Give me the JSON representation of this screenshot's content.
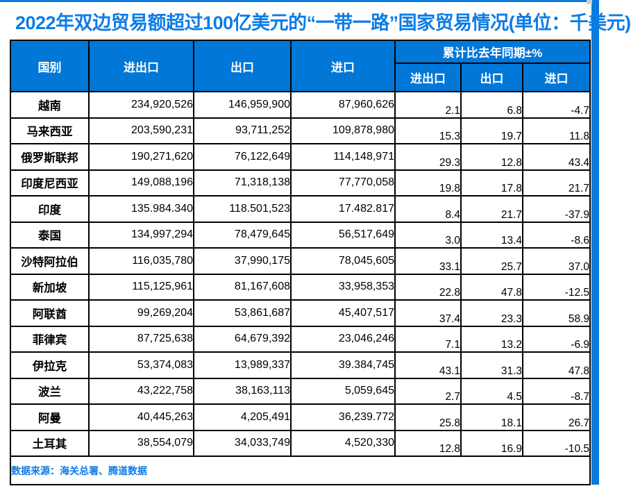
{
  "page": {
    "title": "2022年双边贸易额超过100亿美元的“一带一路”国家贸易情况(单位：千美元)",
    "source_note": "数据来源：海关总署、腾道数据"
  },
  "colors": {
    "header_bg": "#0177d7",
    "title_text": "#0d7ce6",
    "source_text": "#0d7ce6",
    "scrollbar_blue": "#0b79dd",
    "border_black": "#000000"
  },
  "headers": {
    "country": "国别",
    "total": "进出口",
    "export": "出口",
    "import": "进口",
    "group": "累计比去年同期±%",
    "sub_total": "进出口",
    "sub_export": "出口",
    "sub_import": "进口"
  },
  "chart_data": {
    "type": "table",
    "title": "2022年双边贸易额超过100亿美元的“一带一路”国家贸易情况(单位：千美元)",
    "columns": [
      "国别",
      "进出口",
      "出口",
      "进口",
      "累计比去年同期±% 进出口",
      "累计比去年同期±% 出口",
      "累计比去年同期±% 进口"
    ],
    "rows": [
      {
        "country": "越南",
        "total": "234,920,526",
        "export": "146,959,900",
        "import": "87,960,626",
        "total_pct": "2.1",
        "export_pct": "6.8",
        "import_pct": "-4.7"
      },
      {
        "country": "马来西亚",
        "total": "203,590,231",
        "export": "93,711,252",
        "import": "109,878,980",
        "total_pct": "15.3",
        "export_pct": "19.7",
        "import_pct": "11.8"
      },
      {
        "country": "俄罗斯联邦",
        "total": "190,271,620",
        "export": "76,122,649",
        "import": "114,148,971",
        "total_pct": "29.3",
        "export_pct": "12.8",
        "import_pct": "43.4"
      },
      {
        "country": "印度尼西亚",
        "total": "149,088,196",
        "export": "71,318,138",
        "import": "77,770,058",
        "total_pct": "19.8",
        "export_pct": "17.8",
        "import_pct": "21.7"
      },
      {
        "country": "印度",
        "total": "135.984.340",
        "export": "118.501,523",
        "import": "17.482.817",
        "total_pct": "8.4",
        "export_pct": "21.7",
        "import_pct": "-37.9"
      },
      {
        "country": "泰国",
        "total": "134,997,294",
        "export": "78,479,645",
        "import": "56,517,649",
        "total_pct": "3.0",
        "export_pct": "13.4",
        "import_pct": "-8.6"
      },
      {
        "country": "沙特阿拉伯",
        "total": "116,035,780",
        "export": "37,990,175",
        "import": "78,045,605",
        "total_pct": "33.1",
        "export_pct": "25.7",
        "import_pct": "37.0"
      },
      {
        "country": "新加坡",
        "total": "115,125,961",
        "export": "81,167,608",
        "import": "33,958,353",
        "total_pct": "22.8",
        "export_pct": "47.8",
        "import_pct": "-12.5"
      },
      {
        "country": "阿联酋",
        "total": "99,269,204",
        "export": "53,861,687",
        "import": "45,407,517",
        "total_pct": "37.4",
        "export_pct": "23.3",
        "import_pct": "58.9"
      },
      {
        "country": "菲律宾",
        "total": "87,725,638",
        "export": "64,679,392",
        "import": "23,046,246",
        "total_pct": "7.1",
        "export_pct": "13.2",
        "import_pct": "-6.9"
      },
      {
        "country": "伊拉克",
        "total": "53,374,083",
        "export": "13,989,337",
        "import": "39.384,745",
        "total_pct": "43.1",
        "export_pct": "31.3",
        "import_pct": "47.8"
      },
      {
        "country": "波兰",
        "total": "43,222,758",
        "export": "38,163,113",
        "import": "5,059,645",
        "total_pct": "2.7",
        "export_pct": "4.5",
        "import_pct": "-8.7"
      },
      {
        "country": "阿曼",
        "total": "40,445,263",
        "export": "4,205,491",
        "import": "36,239.772",
        "total_pct": "25.8",
        "export_pct": "18.1",
        "import_pct": "26.7"
      },
      {
        "country": "土耳其",
        "total": "38,554,079",
        "export": "34,033,749",
        "import": "4,520,330",
        "total_pct": "12.8",
        "export_pct": "16.9",
        "import_pct": "-10.5"
      }
    ]
  }
}
